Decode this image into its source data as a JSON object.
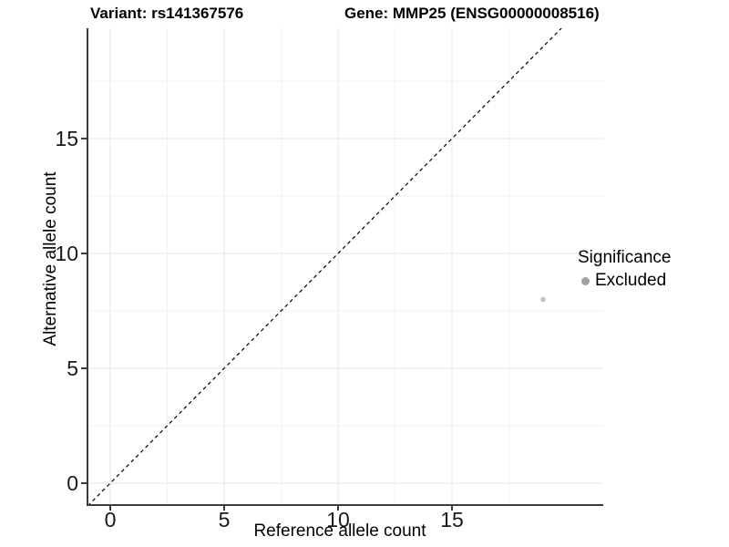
{
  "chart_data": {
    "type": "scatter",
    "title_left": "Variant: rs141367576",
    "title_right": "Gene: MMP25 (ENSG00000008516)",
    "xlabel": "Reference allele count",
    "ylabel": "Alternative allele count",
    "x_ticks": [
      0,
      5,
      10,
      15
    ],
    "y_ticks": [
      0,
      5,
      10,
      15
    ],
    "x_minor": [
      2.5,
      7.5,
      12.5,
      17.5
    ],
    "y_minor": [
      2.5,
      7.5,
      12.5,
      17.5
    ],
    "xlim": [
      -1.0,
      21.6
    ],
    "ylim": [
      -0.9,
      19.8
    ],
    "grid": true,
    "legend": {
      "title": "Significance",
      "position": "right",
      "entries": [
        {
          "label": "Excluded",
          "color": "#a2a2a2"
        }
      ]
    },
    "series": [
      {
        "name": "Excluded",
        "color": "#c4c4c4",
        "points": [
          {
            "x": 19,
            "y": 8
          }
        ]
      }
    ],
    "reference_line": {
      "type": "identity",
      "slope": 1,
      "intercept": 0,
      "style": "dashed",
      "color": "#000000"
    },
    "colors": {
      "major_grid": "#e4e4e4",
      "minor_grid": "#f1f1f1",
      "axis_line": "#3c3c3c"
    }
  }
}
